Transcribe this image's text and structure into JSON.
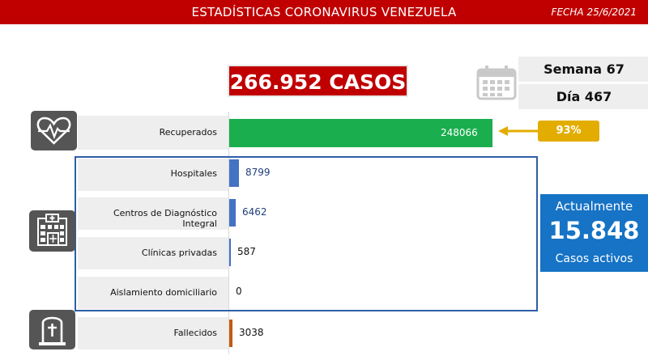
{
  "header": {
    "title": "ESTADÍSTICAS CORONAVIRUS VENEZUELA",
    "date": "FECHA 25/6/2021"
  },
  "total": {
    "label": "266.952 CASOS"
  },
  "week": "Semana 67",
  "day": "Día 467",
  "recovered_percent": "93%",
  "active": {
    "top_label": "Actualmente",
    "value": "15.848",
    "bottom_label": "Casos activos"
  },
  "colors": {
    "brand_red": "#c00000",
    "recovered": "#1aae4e",
    "hospital": "#4472c4",
    "deceased": "#c55a11",
    "accent_gold": "#e3ad00",
    "active_blue": "#1673c5"
  },
  "icons": [
    "heartbeat-icon",
    "hospital-icon",
    "tombstone-icon",
    "calendar-icon",
    "arrow-left-icon"
  ],
  "chart_data": {
    "type": "bar",
    "orientation": "horizontal",
    "categories": [
      "Recuperados",
      "Hospitales",
      "Centros de Diagnóstico Integral",
      "Clínicas privadas",
      "Aislamiento domiciliario",
      "Fallecidos"
    ],
    "values": [
      248066,
      8799,
      6462,
      587,
      0,
      3038
    ],
    "value_labels": [
      "248066",
      "8799",
      "6462",
      "587",
      "0",
      "3038"
    ],
    "xlim": [
      0,
      248066
    ]
  }
}
